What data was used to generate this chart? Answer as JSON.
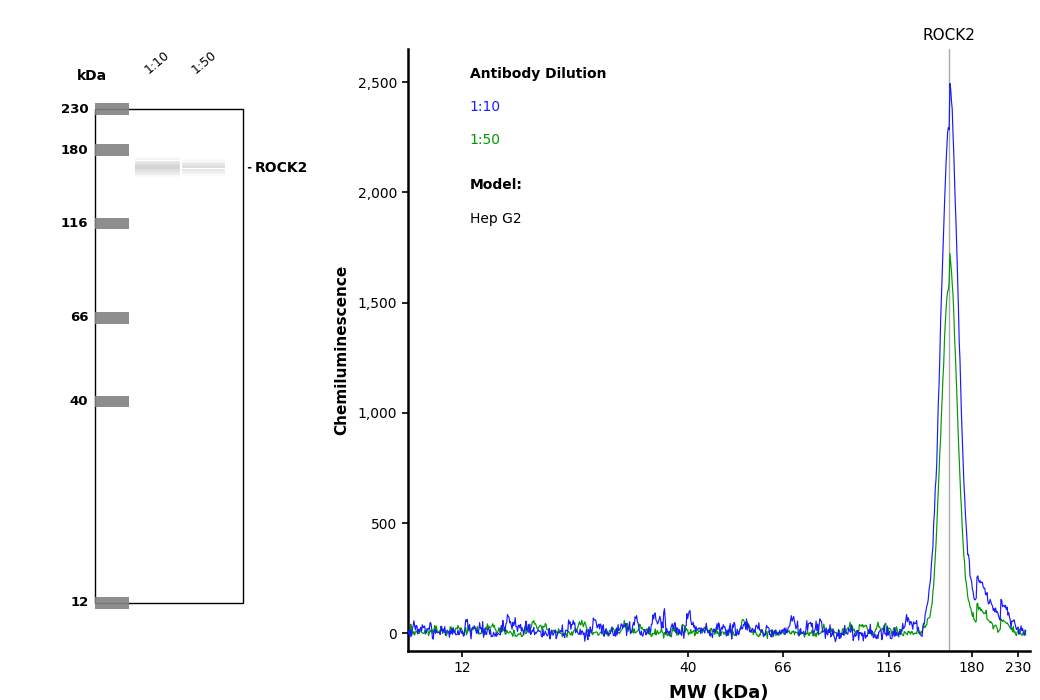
{
  "background_color": "#ffffff",
  "left_panel": {
    "kda_labels": [
      230,
      180,
      116,
      66,
      40,
      12
    ],
    "lane_labels": [
      "1:10",
      "1:50"
    ],
    "rock2_band_kda": 160,
    "band_label": "ROCK2"
  },
  "right_panel": {
    "xlabel": "MW (kDa)",
    "ylabel": "Chemiluminescence",
    "x_ticks": [
      12,
      40,
      66,
      116,
      180,
      230
    ],
    "y_ticks": [
      0,
      500,
      1000,
      1500,
      2000,
      2500
    ],
    "y_min": -80,
    "y_max": 2650,
    "rock2_line_kda": 160,
    "rock2_label": "ROCK2",
    "line1_color": "#1a1aff",
    "line2_color": "#009900",
    "legend_title": "Antibody Dilution",
    "legend_line1": "1:10",
    "legend_line2": "1:50",
    "model_label": "Model:",
    "model_name": "Hep G2"
  }
}
